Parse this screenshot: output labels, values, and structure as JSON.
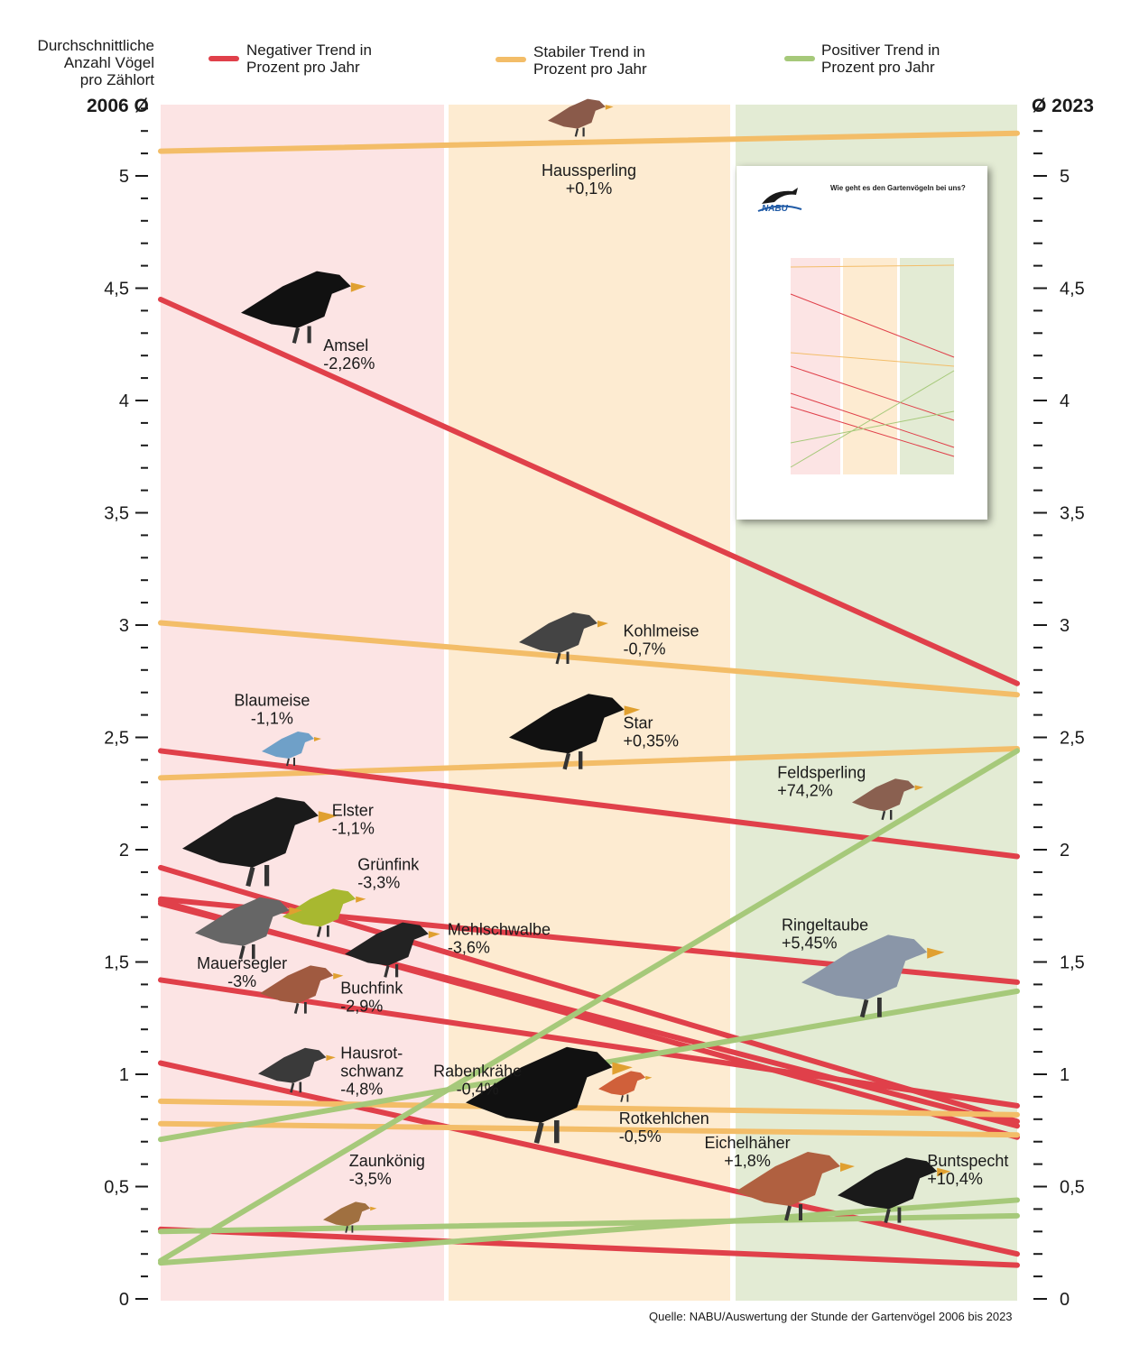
{
  "header": {
    "ylabel": "Durchschnittliche\nAnzahl Vögel\npro Zählort",
    "left_end_label": "2006 Ø",
    "right_end_label": "Ø 2023",
    "legend": [
      {
        "label": "Negativer Trend in\nProzent pro Jahr",
        "color": "#e0404a"
      },
      {
        "label": "Stabiler Trend in\nProzent pro Jahr",
        "color": "#f3bd68"
      },
      {
        "label": "Positiver Trend in\nProzent  pro Jahr",
        "color": "#a6c97a"
      }
    ]
  },
  "footer": {
    "source": "Quelle: NABU/Auswertung der Stunde der Gartenvögel 2006 bis 2023"
  },
  "thumbnail": {
    "title": "Wie geht es den Gartenvögeln bei uns?",
    "logo": "NABU"
  },
  "colors": {
    "negative": "#e0404a",
    "stable": "#f3bd68",
    "positive": "#a6c97a",
    "band_negative": "#fce4e4",
    "band_stable": "#fdebd1",
    "band_positive": "#e3ebd4"
  },
  "chart_data": {
    "type": "line",
    "title": "",
    "xlabel": "",
    "ylabel": "Durchschnittliche Anzahl Vögel pro Zählort",
    "x": [
      "2006",
      "2023"
    ],
    "ylim": [
      0,
      5.3
    ],
    "y_ticks": [
      "0",
      "0,5",
      "1",
      "1,5",
      "2",
      "2,5",
      "3",
      "3,5",
      "4",
      "4,5",
      "5"
    ],
    "series": [
      {
        "name": "Haussperling",
        "trend": "+0,1%",
        "category": "stable",
        "values": [
          5.11,
          5.19
        ]
      },
      {
        "name": "Amsel",
        "trend": "-2,26%",
        "category": "negative",
        "values": [
          4.45,
          2.74
        ]
      },
      {
        "name": "Kohlmeise",
        "trend": "-0,7%",
        "category": "stable",
        "values": [
          3.01,
          2.69
        ]
      },
      {
        "name": "Star",
        "trend": "+0,35%",
        "category": "stable",
        "values": [
          2.32,
          2.45
        ]
      },
      {
        "name": "Blaumeise",
        "trend": "-1,1%",
        "category": "negative",
        "values": [
          2.44,
          1.97
        ]
      },
      {
        "name": "Elster",
        "trend": "-1,1%",
        "category": "negative",
        "values": [
          1.78,
          1.41
        ]
      },
      {
        "name": "Grünfink",
        "trend": "-3,3%",
        "category": "negative",
        "values": [
          1.92,
          0.79
        ]
      },
      {
        "name": "Mehlschwalbe",
        "trend": "-3,6%",
        "category": "negative",
        "values": [
          1.77,
          0.72
        ]
      },
      {
        "name": "Mauersegler",
        "trend": "-3%",
        "category": "negative",
        "values": [
          1.76,
          0.77
        ]
      },
      {
        "name": "Buchfink",
        "trend": "-2,9%",
        "category": "negative",
        "values": [
          1.42,
          0.86
        ]
      },
      {
        "name": "Hausrot-\nschwanz",
        "trend": "-4,8%",
        "category": "negative",
        "values": [
          1.05,
          0.2
        ]
      },
      {
        "name": "Rabenkrähe",
        "trend": "-0,4%",
        "category": "stable",
        "values": [
          0.88,
          0.82
        ]
      },
      {
        "name": "Rotkehlchen",
        "trend": "-0,5%",
        "category": "stable",
        "values": [
          0.78,
          0.73
        ]
      },
      {
        "name": "Zaunkönig",
        "trend": "-3,5%",
        "category": "negative",
        "values": [
          0.31,
          0.15
        ]
      },
      {
        "name": "Feldsperling",
        "trend": "+74,2%",
        "category": "positive",
        "values": [
          0.17,
          2.44
        ]
      },
      {
        "name": "Ringeltaube",
        "trend": "+5,45%",
        "category": "positive",
        "values": [
          0.71,
          1.37
        ]
      },
      {
        "name": "Eichelhäher",
        "trend": "+1,8%",
        "category": "positive",
        "values": [
          0.3,
          0.37
        ]
      },
      {
        "name": "Buntspecht",
        "trend": "+10,4%",
        "category": "positive",
        "values": [
          0.16,
          0.44
        ]
      }
    ],
    "labels": [
      {
        "series": "Haussperling",
        "x": 0.5,
        "y": 5.0,
        "anchor": "middle"
      },
      {
        "series": "Amsel",
        "x": 0.19,
        "y": 4.22,
        "anchor": "start"
      },
      {
        "series": "Kohlmeise",
        "x": 0.54,
        "y": 2.95,
        "anchor": "start"
      },
      {
        "series": "Star",
        "x": 0.54,
        "y": 2.54,
        "anchor": "start"
      },
      {
        "series": "Blaumeise",
        "x": 0.13,
        "y": 2.64,
        "anchor": "middle"
      },
      {
        "series": "Elster",
        "x": 0.2,
        "y": 2.15,
        "anchor": "start"
      },
      {
        "series": "Grünfink",
        "x": 0.23,
        "y": 1.91,
        "anchor": "start"
      },
      {
        "series": "Mehlschwalbe",
        "x": 0.335,
        "y": 1.62,
        "anchor": "start"
      },
      {
        "series": "Mauersegler",
        "x": 0.095,
        "y": 1.47,
        "anchor": "middle"
      },
      {
        "series": "Buchfink",
        "x": 0.21,
        "y": 1.36,
        "anchor": "start"
      },
      {
        "series": "Hausrot-\nschwanz",
        "x": 0.21,
        "y": 1.07,
        "anchor": "start"
      },
      {
        "series": "Rabenkrähe",
        "x": 0.37,
        "y": 0.99,
        "anchor": "middle"
      },
      {
        "series": "Rotkehlchen",
        "x": 0.535,
        "y": 0.78,
        "anchor": "start"
      },
      {
        "series": "Zaunkönig",
        "x": 0.22,
        "y": 0.59,
        "anchor": "start"
      },
      {
        "series": "Feldsperling",
        "x": 0.72,
        "y": 2.32,
        "anchor": "start"
      },
      {
        "series": "Ringeltaube",
        "x": 0.725,
        "y": 1.64,
        "anchor": "start"
      },
      {
        "series": "Eichelhäher",
        "x": 0.685,
        "y": 0.67,
        "anchor": "middle"
      },
      {
        "series": "Buntspecht",
        "x": 0.895,
        "y": 0.59,
        "anchor": "start"
      }
    ]
  }
}
